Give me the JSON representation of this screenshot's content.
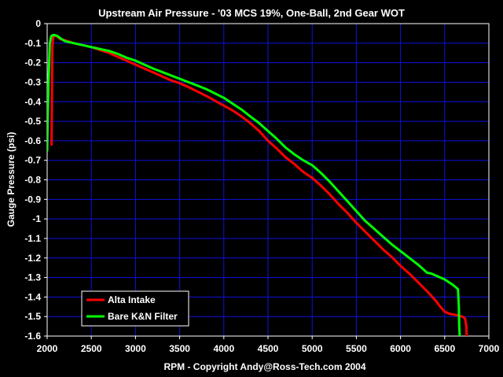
{
  "colors": {
    "background": "#000000",
    "plot_background": "#000000",
    "grid": "#1010e0",
    "axis": "#ffffff",
    "text": "#ffffff",
    "alta": "#ff0000",
    "kn": "#00ff00"
  },
  "chart_data": {
    "type": "line",
    "title": "Upstream Air Pressure - '03 MCS 19%, One-Ball, 2nd Gear WOT",
    "xlabel": "RPM  -  Copyright Andy@Ross-Tech.com 2004",
    "ylabel": "Gauge Pressure (psi)",
    "xlim": [
      2000,
      7000
    ],
    "ylim": [
      -1.6,
      0
    ],
    "grid": true,
    "legend_position": "bottom-left",
    "x_ticks": [
      "2000",
      "2500",
      "3000",
      "3500",
      "4000",
      "4500",
      "5000",
      "5500",
      "6000",
      "6500",
      "7000"
    ],
    "y_ticks": [
      "0",
      "-0.1",
      "-0.2",
      "-0.3",
      "-0.4",
      "-0.5",
      "-0.6",
      "-0.7",
      "-0.8",
      "-0.9",
      "-1",
      "-1.1",
      "-1.2",
      "-1.3",
      "-1.4",
      "-1.5",
      "-1.6"
    ],
    "series": [
      {
        "name": "Alta Intake",
        "color": "#ff0000",
        "points": [
          [
            2050,
            -0.62
          ],
          [
            2055,
            -0.3
          ],
          [
            2060,
            -0.12
          ],
          [
            2065,
            -0.08
          ],
          [
            2075,
            -0.065
          ],
          [
            2090,
            -0.06
          ],
          [
            2110,
            -0.065
          ],
          [
            2150,
            -0.08
          ],
          [
            2200,
            -0.085
          ],
          [
            2300,
            -0.1
          ],
          [
            2400,
            -0.11
          ],
          [
            2500,
            -0.12
          ],
          [
            2600,
            -0.135
          ],
          [
            2700,
            -0.15
          ],
          [
            2800,
            -0.17
          ],
          [
            2900,
            -0.19
          ],
          [
            3000,
            -0.21
          ],
          [
            3200,
            -0.25
          ],
          [
            3400,
            -0.29
          ],
          [
            3500,
            -0.305
          ],
          [
            3600,
            -0.325
          ],
          [
            3800,
            -0.37
          ],
          [
            4000,
            -0.42
          ],
          [
            4100,
            -0.445
          ],
          [
            4200,
            -0.475
          ],
          [
            4300,
            -0.51
          ],
          [
            4400,
            -0.55
          ],
          [
            4500,
            -0.6
          ],
          [
            4600,
            -0.64
          ],
          [
            4700,
            -0.685
          ],
          [
            4800,
            -0.72
          ],
          [
            4900,
            -0.76
          ],
          [
            5000,
            -0.79
          ],
          [
            5100,
            -0.83
          ],
          [
            5200,
            -0.875
          ],
          [
            5300,
            -0.925
          ],
          [
            5400,
            -0.97
          ],
          [
            5500,
            -1.02
          ],
          [
            5600,
            -1.065
          ],
          [
            5700,
            -1.11
          ],
          [
            5800,
            -1.155
          ],
          [
            5900,
            -1.195
          ],
          [
            6000,
            -1.24
          ],
          [
            6100,
            -1.28
          ],
          [
            6200,
            -1.325
          ],
          [
            6300,
            -1.37
          ],
          [
            6400,
            -1.42
          ],
          [
            6450,
            -1.45
          ],
          [
            6500,
            -1.475
          ],
          [
            6550,
            -1.485
          ],
          [
            6600,
            -1.49
          ],
          [
            6650,
            -1.495
          ],
          [
            6700,
            -1.5
          ],
          [
            6730,
            -1.51
          ],
          [
            6745,
            -1.55
          ],
          [
            6750,
            -1.6
          ]
        ]
      },
      {
        "name": "Bare K&N Filter",
        "color": "#00ff00",
        "points": [
          [
            2000,
            -0.65
          ],
          [
            2005,
            -0.5
          ],
          [
            2015,
            -0.3
          ],
          [
            2030,
            -0.1
          ],
          [
            2045,
            -0.065
          ],
          [
            2060,
            -0.06
          ],
          [
            2080,
            -0.058
          ],
          [
            2110,
            -0.062
          ],
          [
            2150,
            -0.075
          ],
          [
            2200,
            -0.09
          ],
          [
            2300,
            -0.1
          ],
          [
            2400,
            -0.11
          ],
          [
            2500,
            -0.12
          ],
          [
            2600,
            -0.13
          ],
          [
            2700,
            -0.14
          ],
          [
            2800,
            -0.155
          ],
          [
            2900,
            -0.175
          ],
          [
            3000,
            -0.19
          ],
          [
            3200,
            -0.23
          ],
          [
            3400,
            -0.265
          ],
          [
            3600,
            -0.3
          ],
          [
            3800,
            -0.335
          ],
          [
            4000,
            -0.38
          ],
          [
            4100,
            -0.41
          ],
          [
            4200,
            -0.44
          ],
          [
            4300,
            -0.475
          ],
          [
            4400,
            -0.51
          ],
          [
            4500,
            -0.55
          ],
          [
            4600,
            -0.59
          ],
          [
            4700,
            -0.635
          ],
          [
            4800,
            -0.67
          ],
          [
            4900,
            -0.7
          ],
          [
            5000,
            -0.725
          ],
          [
            5100,
            -0.765
          ],
          [
            5200,
            -0.81
          ],
          [
            5300,
            -0.86
          ],
          [
            5400,
            -0.91
          ],
          [
            5500,
            -0.96
          ],
          [
            5600,
            -1.01
          ],
          [
            5700,
            -1.05
          ],
          [
            5800,
            -1.09
          ],
          [
            5900,
            -1.13
          ],
          [
            6000,
            -1.165
          ],
          [
            6100,
            -1.2
          ],
          [
            6200,
            -1.235
          ],
          [
            6300,
            -1.275
          ],
          [
            6350,
            -1.28
          ],
          [
            6400,
            -1.29
          ],
          [
            6500,
            -1.31
          ],
          [
            6600,
            -1.34
          ],
          [
            6650,
            -1.36
          ],
          [
            6660,
            -1.45
          ],
          [
            6665,
            -1.55
          ],
          [
            6670,
            -1.6
          ]
        ]
      }
    ]
  }
}
